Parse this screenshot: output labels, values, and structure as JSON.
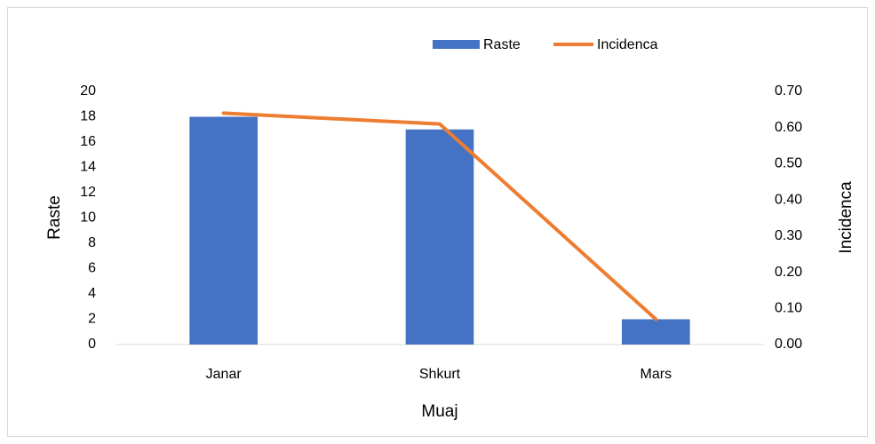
{
  "chart_data": {
    "type": "combo",
    "categories": [
      "Janar",
      "Shkurt",
      "Mars"
    ],
    "series": [
      {
        "name": "Raste",
        "type": "bar",
        "color": "#4472c4",
        "values": [
          18,
          17,
          2
        ]
      },
      {
        "name": "Incidenca",
        "type": "line",
        "color": "#ed7d31",
        "axis": "y2",
        "values": [
          0.64,
          0.61,
          0.07
        ]
      }
    ],
    "ylabel": "Raste",
    "y2label": "Incidenca",
    "xlabel": "Muaj",
    "ylim": [
      0,
      20
    ],
    "yticks": [
      0,
      2,
      4,
      6,
      8,
      10,
      12,
      14,
      16,
      18,
      20
    ],
    "y2lim": [
      0,
      0.7
    ],
    "y2ticks": [
      {
        "value": 0,
        "label": "0.00"
      },
      {
        "value": 0.1,
        "label": "0.10"
      },
      {
        "value": 0.2,
        "label": "0.20"
      },
      {
        "value": 0.3,
        "label": "0.30"
      },
      {
        "value": 0.4,
        "label": "0.40"
      },
      {
        "value": 0.5,
        "label": "0.50"
      },
      {
        "value": 0.6,
        "label": "0.60"
      },
      {
        "value": 0.7,
        "label": "0.70"
      }
    ],
    "legend": "top"
  }
}
